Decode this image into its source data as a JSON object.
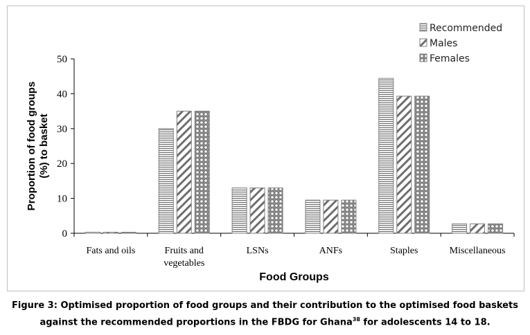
{
  "chart_data": {
    "type": "bar",
    "title": "",
    "xlabel": "Food Groups",
    "ylabel_lines": [
      "Proportion of food groups",
      "(%) to basket"
    ],
    "categories": [
      [
        "Fats and oils"
      ],
      [
        "Fruits and",
        "vegetables"
      ],
      [
        "LSNs"
      ],
      [
        "ANFs"
      ],
      [
        "Staples"
      ],
      [
        "Miscellaneous"
      ]
    ],
    "ylim": [
      0,
      50
    ],
    "yticks": [
      0,
      10,
      20,
      30,
      40,
      50
    ],
    "grid": false,
    "legend_position": "top-right",
    "series": [
      {
        "name": "Recommended",
        "pattern": "horizontal-lines",
        "values": [
          0.3,
          30,
          13,
          9.5,
          44.4,
          2.7
        ]
      },
      {
        "name": "Males",
        "pattern": "diagonal-lines",
        "values": [
          0.3,
          35,
          13,
          9.5,
          39.3,
          2.7
        ]
      },
      {
        "name": "Females",
        "pattern": "dots",
        "values": [
          0.3,
          35,
          13,
          9.5,
          39.3,
          2.7
        ]
      }
    ],
    "colors": {
      "bar_stroke": "#7f7f7f",
      "pattern": "#6e6e6e",
      "axis": "#000000"
    }
  },
  "caption": {
    "line1": "Figure 3: Optimised proportion of food groups and their contribution to the optimised food baskets",
    "line2_pre": "against the recommended proportions in the FBDG for Ghana",
    "line2_sup": "38",
    "line2_post": " for adolescents 14 to 18."
  }
}
